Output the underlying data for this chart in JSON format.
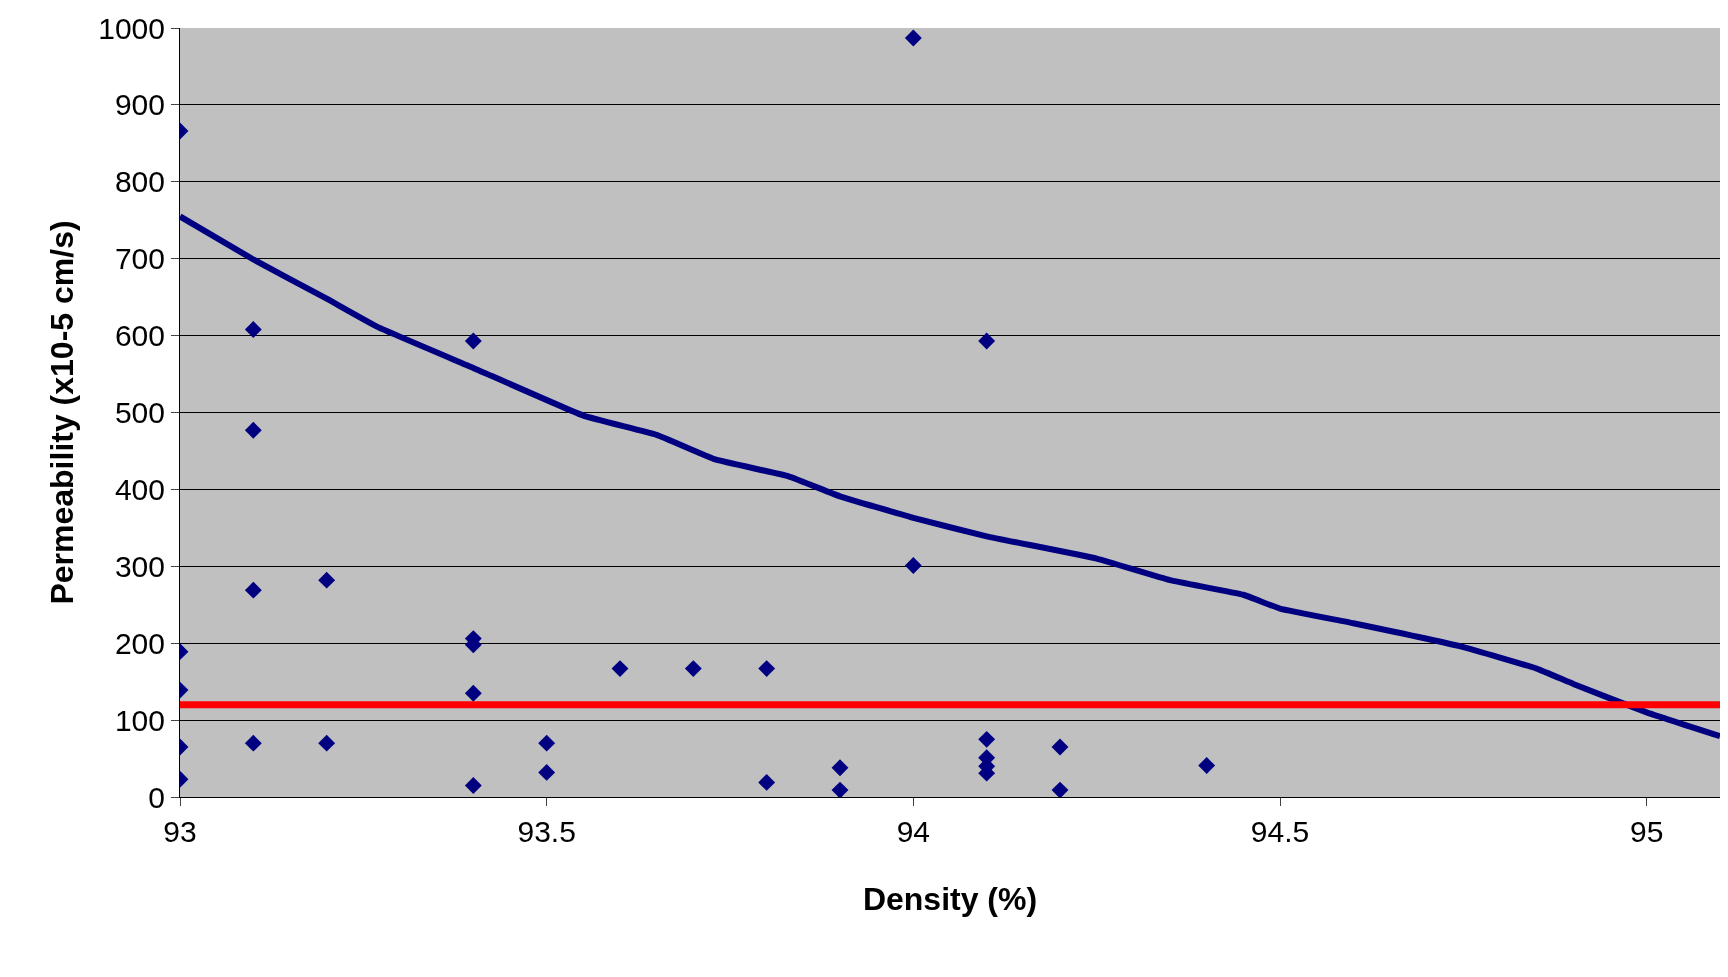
{
  "chart_data": {
    "type": "scatter",
    "xlabel": "Density (%)",
    "ylabel": "Permeability (x10-5 cm/s)",
    "xlim": [
      93,
      95.1
    ],
    "xticks": [
      93,
      93.5,
      94,
      94.5,
      95
    ],
    "ylim": [
      0,
      1000
    ],
    "yticks": [
      0,
      100,
      200,
      300,
      400,
      500,
      600,
      700,
      800,
      900,
      1000
    ],
    "grid": "y",
    "marker": "diamond",
    "series": [
      {
        "color": "#000080",
        "x": [
          93,
          93,
          93,
          93,
          93,
          93.1,
          93.1,
          93.1,
          93.1,
          93.2,
          93.2,
          93.4,
          93.4,
          93.4,
          93.4,
          93.4,
          93.5,
          93.5,
          93.6,
          93.7,
          93.8,
          93.8,
          93.9,
          93.9,
          94,
          94,
          94.1,
          94.1,
          94.1,
          94.1,
          94.1,
          94.2,
          94.2,
          94.4
        ],
        "values": [
          866,
          189,
          139,
          65,
          23,
          608,
          477,
          269,
          70,
          282,
          70,
          593,
          206,
          198,
          135,
          15,
          70,
          32,
          167,
          167,
          167,
          19,
          38,
          9,
          987,
          301,
          593,
          75,
          51,
          40,
          31,
          65,
          9,
          41
        ]
      },
      {
        "type": "line",
        "color": "#000080",
        "marker": "none",
        "x": [
          93,
          93.1,
          93.2,
          93.27,
          93.4,
          93.55,
          93.65,
          93.73,
          93.83,
          93.9,
          94,
          94.1,
          94.25,
          94.35,
          94.45,
          94.5,
          94.6,
          94.75,
          94.85,
          94.9,
          95,
          95.1
        ],
        "values": [
          755,
          699,
          648,
          611,
          558,
          496,
          471,
          439,
          417,
          391,
          363,
          339,
          310,
          282,
          263,
          245,
          226,
          195,
          167,
          147,
          110,
          79
        ]
      }
    ],
    "ref_lines": [
      {
        "axis": "y",
        "value": 120,
        "color": "#ff0000",
        "line_style": "solid"
      }
    ]
  }
}
